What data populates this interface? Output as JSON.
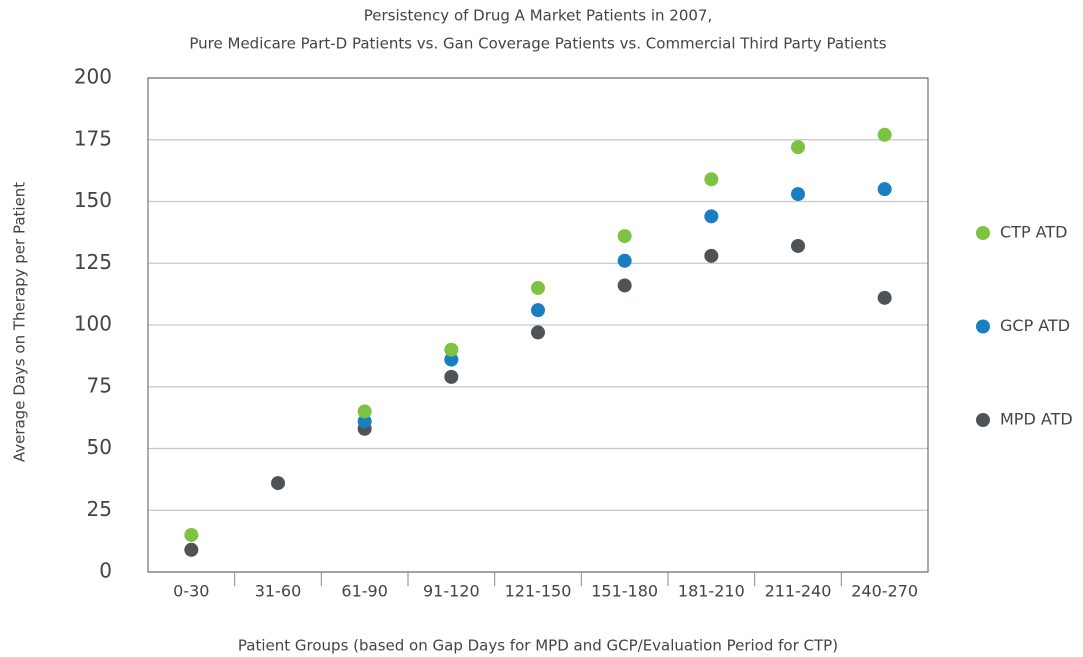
{
  "chart_data": {
    "type": "scatter",
    "title": "Persistency of Drug A Market Patients in 2007,",
    "subtitle": "Pure Medicare Part-D Patients vs. Gan Coverage Patients vs. Commercial Third Party Patients",
    "x_label": "Patient Groups (based on Gap Days for MPD and GCP/Evaluation Period for CTP)",
    "y_label": "Average Days on Therapy per Patient",
    "categories": [
      "0-30",
      "31-60",
      "61-90",
      "91-120",
      "121-150",
      "151-180",
      "181-210",
      "211-240",
      "240-270"
    ],
    "series": [
      {
        "name": "CTP ATD",
        "color": "#7dc242",
        "values": [
          15,
          null,
          65,
          90,
          115,
          136,
          159,
          172,
          177
        ]
      },
      {
        "name": "GCP ATD",
        "color": "#1a7fc1",
        "values": [
          null,
          null,
          61,
          86,
          106,
          126,
          144,
          153,
          155
        ]
      },
      {
        "name": "MPD ATD",
        "color": "#4d5356",
        "values": [
          9,
          36,
          58,
          79,
          97,
          116,
          128,
          132,
          111
        ]
      }
    ],
    "ylim": [
      0,
      200
    ],
    "yticks": [
      0,
      25,
      50,
      75,
      100,
      125,
      150,
      175,
      200
    ],
    "grid": true,
    "legend": "right"
  }
}
